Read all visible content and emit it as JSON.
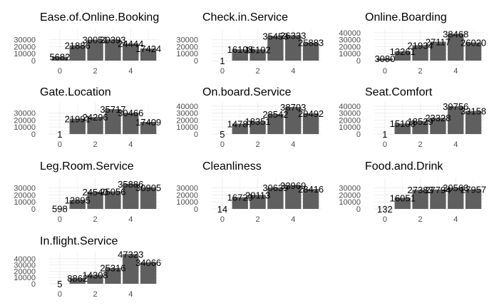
{
  "chart_data": [
    {
      "type": "bar",
      "title": "Ease.of.Online.Booking",
      "categories": [
        0,
        1,
        2,
        3,
        4,
        5
      ],
      "values": [
        5682,
        21886,
        30051,
        30393,
        24444,
        17424
      ],
      "ylim": [
        0,
        45000
      ],
      "yticks": [
        0,
        10000,
        20000,
        30000
      ],
      "xticks": [
        0,
        2,
        4
      ],
      "grid": true
    },
    {
      "type": "bar",
      "title": "Check.in.Service",
      "categories": [
        0,
        1,
        2,
        3,
        4,
        5
      ],
      "values": [
        1,
        16108,
        16102,
        35453,
        36333,
        25883
      ],
      "ylim": [
        0,
        45000
      ],
      "yticks": [
        0,
        10000,
        20000,
        30000
      ],
      "xticks": [
        0,
        2,
        4
      ],
      "grid": true
    },
    {
      "type": "bar",
      "title": "Online.Boarding",
      "categories": [
        0,
        1,
        2,
        3,
        4,
        5
      ],
      "values": [
        3080,
        13261,
        21934,
        27117,
        38468,
        26020
      ],
      "ylim": [
        0,
        45000
      ],
      "yticks": [
        0,
        10000,
        20000,
        30000,
        40000
      ],
      "xticks": [
        0,
        2,
        4
      ],
      "grid": true
    },
    {
      "type": "bar",
      "title": "Gate.Location",
      "categories": [
        0,
        1,
        2,
        3,
        4,
        5
      ],
      "values": [
        1,
        21991,
        24296,
        35717,
        30466,
        17409
      ],
      "ylim": [
        0,
        45000
      ],
      "yticks": [
        0,
        10000,
        20000,
        30000
      ],
      "xticks": [
        0,
        2,
        4
      ],
      "grid": true
    },
    {
      "type": "bar",
      "title": "On.board.Service",
      "categories": [
        0,
        1,
        2,
        3,
        4,
        5
      ],
      "values": [
        5,
        14787,
        18351,
        28542,
        38703,
        29492
      ],
      "ylim": [
        0,
        45000
      ],
      "yticks": [
        0,
        10000,
        20000,
        30000,
        40000
      ],
      "xticks": [
        0,
        2,
        4
      ],
      "grid": true
    },
    {
      "type": "bar",
      "title": "Seat.Comfort",
      "categories": [
        0,
        1,
        2,
        3,
        4,
        5
      ],
      "values": [
        1,
        15108,
        18529,
        23328,
        39756,
        33158
      ],
      "ylim": [
        0,
        45000
      ],
      "yticks": [
        0,
        10000,
        20000,
        30000,
        40000
      ],
      "xticks": [
        0,
        2,
        4
      ],
      "grid": true
    },
    {
      "type": "bar",
      "title": "Leg.Room.Service",
      "categories": [
        0,
        1,
        2,
        3,
        4,
        5
      ],
      "values": [
        598,
        12895,
        24540,
        25056,
        35886,
        30905
      ],
      "ylim": [
        0,
        45000
      ],
      "yticks": [
        0,
        10000,
        20000,
        30000
      ],
      "xticks": [
        0,
        2,
        4
      ],
      "grid": true
    },
    {
      "type": "bar",
      "title": "Cleanliness",
      "categories": [
        0,
        1,
        2,
        3,
        4,
        5
      ],
      "values": [
        14,
        16729,
        20113,
        30639,
        33969,
        28416
      ],
      "ylim": [
        0,
        45000
      ],
      "yticks": [
        0,
        10000,
        20000,
        30000
      ],
      "xticks": [
        0,
        2,
        4
      ],
      "grid": true
    },
    {
      "type": "bar",
      "title": "Food.and.Drink",
      "categories": [
        0,
        1,
        2,
        3,
        4,
        5
      ],
      "values": [
        132,
        16051,
        27383,
        27794,
        30563,
        27957
      ],
      "ylim": [
        0,
        45000
      ],
      "yticks": [
        0,
        10000,
        20000,
        30000
      ],
      "xticks": [
        0,
        2,
        4
      ],
      "grid": true
    },
    {
      "type": "bar",
      "title": "In.flight.Service",
      "categories": [
        0,
        1,
        2,
        3,
        4,
        5
      ],
      "values": [
        5,
        8862,
        14308,
        25316,
        47323,
        34066
      ],
      "ylim": [
        0,
        50000
      ],
      "yticks": [
        0,
        10000,
        20000,
        30000,
        40000
      ],
      "xticks": [
        0,
        2,
        4
      ],
      "grid": true
    }
  ],
  "colors": {
    "bar": "#5f5f5f",
    "grid": "#ebebeb",
    "text": "#000000",
    "axis_text": "#4d4d4d"
  }
}
